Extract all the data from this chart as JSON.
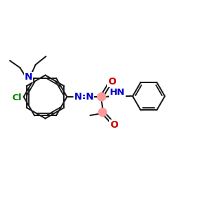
{
  "bg_color": "#ffffff",
  "bond_color": "#1a1a1a",
  "n_color": "#0000cc",
  "cl_color": "#008800",
  "o_color": "#cc0000",
  "azo_color": "#0000cc",
  "highlight_color": "#ff9999",
  "figsize": [
    3.0,
    3.0
  ],
  "dpi": 100,
  "xlim": [
    0,
    10
  ],
  "ylim": [
    0,
    10
  ]
}
